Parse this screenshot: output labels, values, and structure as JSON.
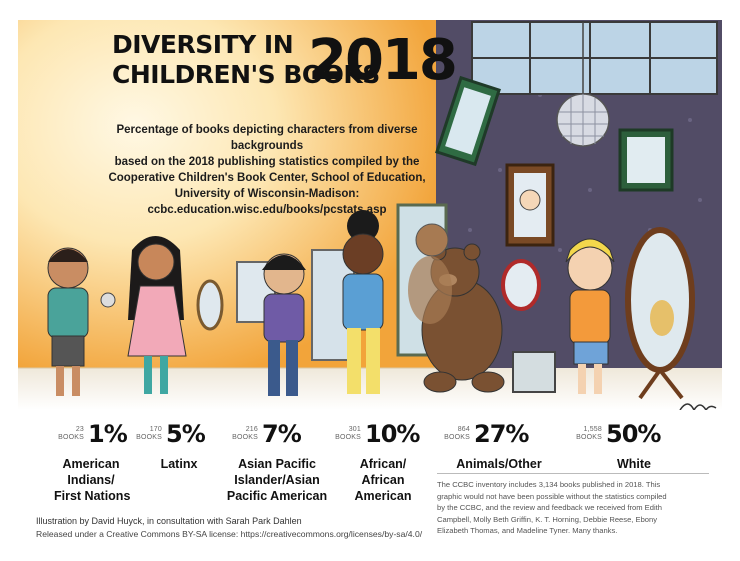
{
  "header": {
    "title_line1": "DIVERSITY IN",
    "title_line2": "CHILDREN'S BOOKS",
    "title_year": "2018",
    "subtitle_lines": [
      "Percentage of books depicting characters from diverse backgrounds",
      "based on the 2018 publishing statistics compiled by the",
      "Cooperative Children's Book Center, School of Education,",
      "University of Wisconsin-Madison:",
      "ccbc.education.wisc.edu/books/pcstats.asp"
    ]
  },
  "chart_data": {
    "type": "table",
    "categories": [
      "American Indians/First Nations",
      "Latinx",
      "Asian Pacific Islander/Asian Pacific American",
      "African/African American",
      "Animals/Other",
      "White"
    ],
    "series": [
      {
        "values": [
          23,
          170,
          216,
          301,
          864,
          1558
        ]
      },
      {
        "values": [
          1,
          5,
          7,
          10,
          27,
          50
        ]
      }
    ],
    "stats": [
      {
        "count_lines": [
          "23",
          "BOOKS"
        ],
        "percent": "1%",
        "percent_value": 1,
        "book_count": 23,
        "label_lines": [
          "American",
          "Indians/",
          "First Nations"
        ]
      },
      {
        "count_lines": [
          "170",
          "BOOKS"
        ],
        "percent": "5%",
        "percent_value": 5,
        "book_count": 170,
        "label_lines": [
          "Latinx"
        ]
      },
      {
        "count_lines": [
          "216",
          "BOOKS"
        ],
        "percent": "7%",
        "percent_value": 7,
        "book_count": 216,
        "label_lines": [
          "Asian Pacific",
          "Islander/Asian",
          "Pacific American"
        ]
      },
      {
        "count_lines": [
          "301",
          "BOOKS"
        ],
        "percent": "10%",
        "percent_value": 10,
        "book_count": 301,
        "label_lines": [
          "African/",
          "African",
          "American"
        ]
      },
      {
        "count_lines": [
          "864",
          "BOOKS"
        ],
        "percent": "27%",
        "percent_value": 27,
        "book_count": 864,
        "label_lines": [
          "Animals/Other"
        ]
      },
      {
        "count_lines": [
          "1,558",
          "BOOKS"
        ],
        "percent": "50%",
        "percent_value": 50,
        "book_count": 1558,
        "label_lines": [
          "White"
        ]
      }
    ]
  },
  "credits": {
    "line1": "Illustration by David Huyck, in consultation with Sarah Park Dahlen",
    "line2": "Released under a Creative Commons BY-SA license: https://creativecommons.org/licenses/by-sa/4.0/"
  },
  "note_lines": [
    "The CCBC inventory includes 3,134 books published in 2018. This",
    "graphic would not have been possible without the statistics compiled",
    "by the CCBC, and the review and feedback we received from Edith",
    "Campbell, Molly Beth Griffin, K. T. Horning, Debbie Reese, Ebony",
    "Elizabeth Thomas, and Madeline Tyner. Many thanks."
  ],
  "colors": {
    "warm_wall": "#f2a43a",
    "warm_light": "#fdf0cf",
    "purple_wall": "#4f4a63",
    "floor": "#ece6d8",
    "text": "#111111"
  },
  "icons": [
    "mirror-icon",
    "disco-ball-icon",
    "bear-icon",
    "window-icon"
  ]
}
